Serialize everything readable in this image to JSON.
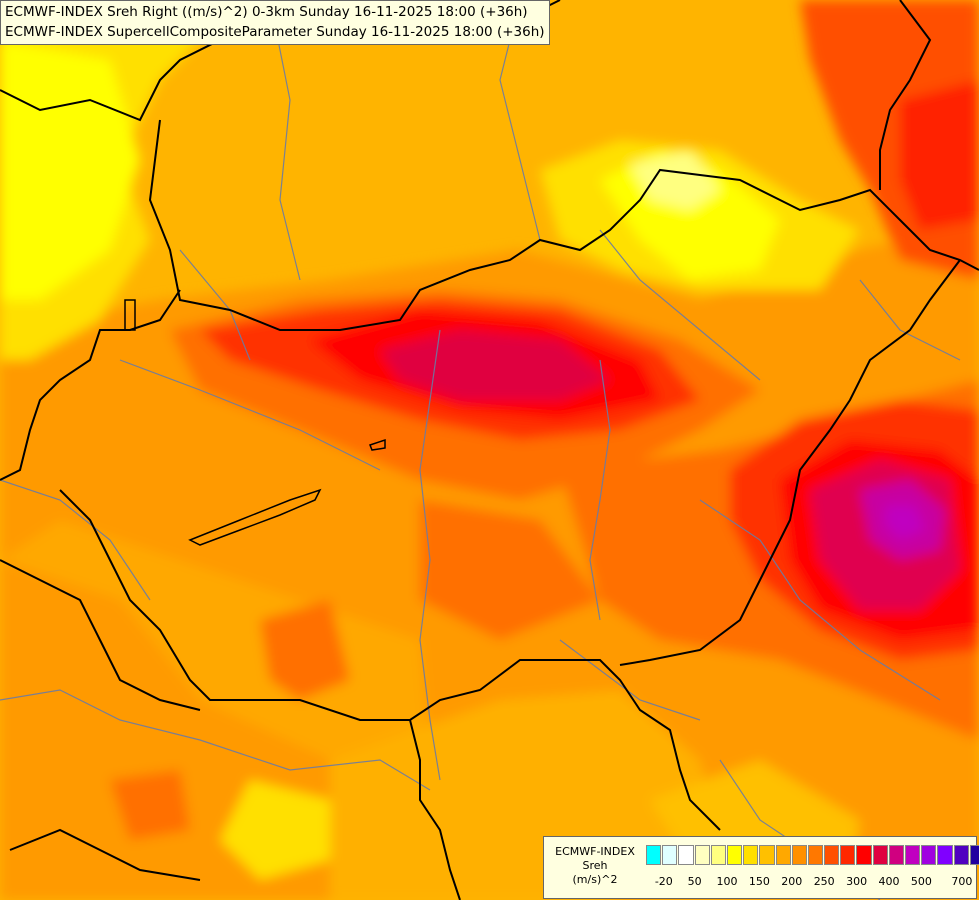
{
  "titles": [
    "ECMWF-INDEX Sreh Right ((m/s)^2) 0-3km Sunday 16-11-2025 18:00 (+36h)",
    "ECMWF-INDEX SupercellCompositeParameter Sunday 16-11-2025 18:00 (+36h)"
  ],
  "legend": {
    "model": "ECMWF-INDEX",
    "variable": "Sreh",
    "unit": "(m/s)^2",
    "colors": [
      "#00ffff",
      "#e0ffff",
      "#ffffff",
      "#ffffc0",
      "#ffff80",
      "#ffff00",
      "#ffe000",
      "#ffc000",
      "#ffa800",
      "#ff9000",
      "#ff7800",
      "#ff5000",
      "#ff2800",
      "#ff0000",
      "#e00040",
      "#d00080",
      "#c000c0",
      "#a000e0",
      "#8000ff",
      "#5000c0",
      "#2000a0",
      "#000080"
    ],
    "tick_labels": [
      "-20",
      "50",
      "100",
      "150",
      "200",
      "250",
      "300",
      "400",
      "500",
      "700"
    ]
  },
  "colors": {
    "background": "#ffb400",
    "yellow": "#ffff00",
    "light_yellow": "#ffff80",
    "orange": "#ff9600",
    "dark_orange": "#ff7000",
    "red_orange": "#ff4000",
    "red": "#ff0000",
    "crimson": "#e00060",
    "magenta": "#c000c0",
    "border": "#000000",
    "river": "#6b7ba3"
  }
}
